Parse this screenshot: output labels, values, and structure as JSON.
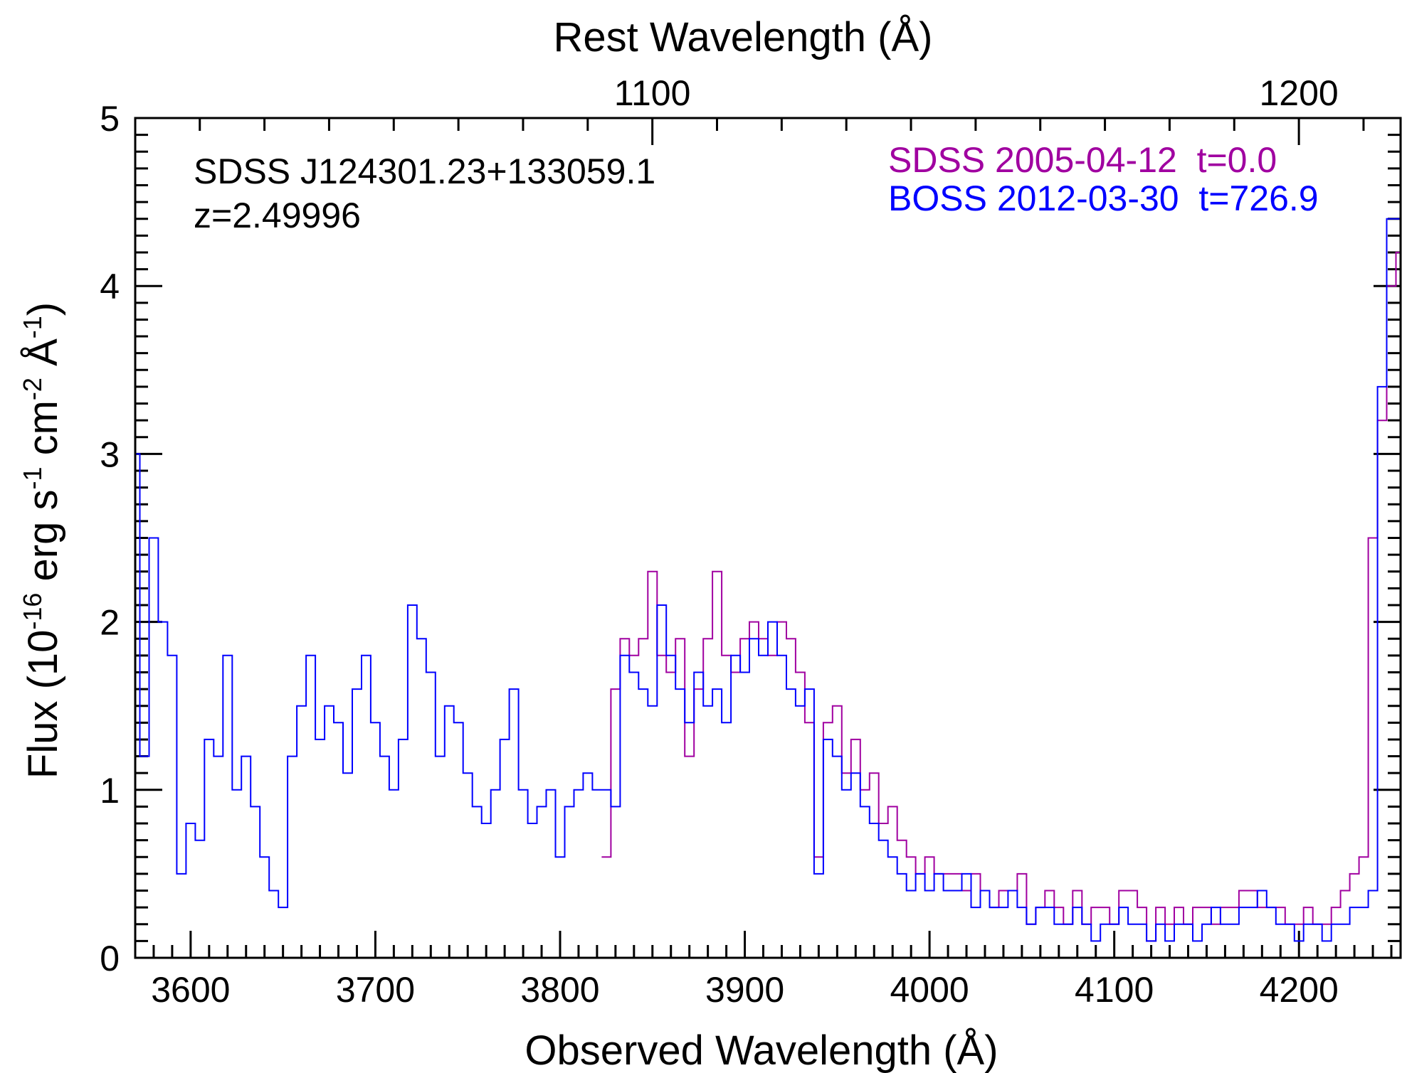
{
  "chart_data": {
    "type": "line",
    "top_axis_title": "Rest Wavelength (Å)",
    "xlabel": "Observed Wavelength (Å)",
    "ylabel": {
      "base": "Flux (10",
      "exp1": "-16",
      "mid1": " erg s",
      "exp2": "-1",
      "mid2": " cm",
      "exp3": "-2",
      "mid3": " Å",
      "exp4": "-1",
      "end": ")"
    },
    "object_name": "SDSS J124301.23+133059.1",
    "redshift_label": "z=2.49996",
    "redshift": 2.49996,
    "xlim": [
      3570,
      4255
    ],
    "ylim": [
      0,
      5
    ],
    "x_ticks": [
      "3600",
      "3700",
      "3800",
      "3900",
      "4000",
      "4100",
      "4200"
    ],
    "x_tick_values": [
      3600,
      3700,
      3800,
      3900,
      4000,
      4100,
      4200
    ],
    "y_ticks": [
      "0",
      "1",
      "2",
      "3",
      "4",
      "5"
    ],
    "y_tick_values": [
      0,
      1,
      2,
      3,
      4,
      5
    ],
    "top_ticks": [
      "1100",
      "1200"
    ],
    "top_tick_values": [
      1100,
      1200
    ],
    "grid": false,
    "legend_position": "top-right",
    "series": [
      {
        "name": "SDSS 2005-04-12  t=0.0",
        "color": "#a000a0",
        "style": "step",
        "x": [
          3825,
          3830,
          3835,
          3840,
          3845,
          3850,
          3855,
          3860,
          3865,
          3870,
          3875,
          3880,
          3885,
          3890,
          3895,
          3900,
          3905,
          3910,
          3915,
          3920,
          3925,
          3930,
          3935,
          3940,
          3945,
          3950,
          3955,
          3960,
          3965,
          3970,
          3975,
          3980,
          3985,
          3990,
          3995,
          4000,
          4005,
          4010,
          4015,
          4020,
          4025,
          4030,
          4035,
          4040,
          4045,
          4050,
          4055,
          4060,
          4065,
          4070,
          4075,
          4080,
          4085,
          4090,
          4095,
          4100,
          4105,
          4110,
          4115,
          4120,
          4125,
          4130,
          4135,
          4140,
          4145,
          4150,
          4155,
          4160,
          4165,
          4170,
          4175,
          4180,
          4185,
          4190,
          4195,
          4200,
          4205,
          4210,
          4215,
          4220,
          4225,
          4230,
          4235,
          4240,
          4245,
          4250,
          4255
        ],
        "y": [
          0.6,
          1.6,
          1.9,
          1.8,
          1.9,
          2.3,
          1.8,
          1.7,
          1.9,
          1.2,
          1.6,
          1.9,
          2.3,
          1.8,
          1.7,
          1.9,
          2.0,
          1.9,
          1.8,
          2.0,
          1.9,
          1.7,
          1.4,
          0.6,
          1.4,
          1.5,
          1.1,
          1.3,
          1.0,
          1.1,
          0.8,
          0.9,
          0.7,
          0.6,
          0.5,
          0.6,
          0.5,
          0.5,
          0.5,
          0.4,
          0.5,
          0.4,
          0.3,
          0.4,
          0.4,
          0.5,
          0.2,
          0.3,
          0.4,
          0.3,
          0.2,
          0.4,
          0.2,
          0.3,
          0.3,
          0.2,
          0.4,
          0.4,
          0.3,
          0.1,
          0.3,
          0.2,
          0.3,
          0.2,
          0.3,
          0.3,
          0.2,
          0.3,
          0.3,
          0.4,
          0.4,
          0.3,
          0.3,
          0.3,
          0.2,
          0.2,
          0.3,
          0.2,
          0.2,
          0.3,
          0.4,
          0.5,
          0.6,
          2.5,
          3.2,
          4.0,
          4.2
        ]
      },
      {
        "name": "BOSS 2012-03-30  t=726.9",
        "color": "#0000ff",
        "style": "step",
        "x": [
          3570,
          3575,
          3580,
          3585,
          3590,
          3595,
          3600,
          3605,
          3610,
          3615,
          3620,
          3625,
          3630,
          3635,
          3640,
          3645,
          3650,
          3655,
          3660,
          3665,
          3670,
          3675,
          3680,
          3685,
          3690,
          3695,
          3700,
          3705,
          3710,
          3715,
          3720,
          3725,
          3730,
          3735,
          3740,
          3745,
          3750,
          3755,
          3760,
          3765,
          3770,
          3775,
          3780,
          3785,
          3790,
          3795,
          3800,
          3805,
          3810,
          3815,
          3820,
          3825,
          3830,
          3835,
          3840,
          3845,
          3850,
          3855,
          3860,
          3865,
          3870,
          3875,
          3880,
          3885,
          3890,
          3895,
          3900,
          3905,
          3910,
          3915,
          3920,
          3925,
          3930,
          3935,
          3940,
          3945,
          3950,
          3955,
          3960,
          3965,
          3970,
          3975,
          3980,
          3985,
          3990,
          3995,
          4000,
          4005,
          4010,
          4015,
          4020,
          4025,
          4030,
          4035,
          4040,
          4045,
          4050,
          4055,
          4060,
          4065,
          4070,
          4075,
          4080,
          4085,
          4090,
          4095,
          4100,
          4105,
          4110,
          4115,
          4120,
          4125,
          4130,
          4135,
          4140,
          4145,
          4150,
          4155,
          4160,
          4165,
          4170,
          4175,
          4180,
          4185,
          4190,
          4195,
          4200,
          4205,
          4210,
          4215,
          4220,
          4225,
          4230,
          4235,
          4240,
          4245,
          4250,
          4255
        ],
        "y": [
          3.0,
          1.2,
          2.5,
          2.0,
          1.8,
          0.5,
          0.8,
          0.7,
          1.3,
          1.2,
          1.8,
          1.0,
          1.2,
          0.9,
          0.6,
          0.4,
          0.3,
          1.2,
          1.5,
          1.8,
          1.3,
          1.5,
          1.4,
          1.1,
          1.6,
          1.8,
          1.4,
          1.2,
          1.0,
          1.3,
          2.1,
          1.9,
          1.7,
          1.2,
          1.5,
          1.4,
          1.1,
          0.9,
          0.8,
          1.0,
          1.3,
          1.6,
          1.0,
          0.8,
          0.9,
          1.0,
          0.6,
          0.9,
          1.0,
          1.1,
          1.0,
          1.0,
          0.9,
          1.8,
          1.7,
          1.6,
          1.5,
          2.1,
          1.8,
          1.6,
          1.4,
          1.7,
          1.5,
          1.6,
          1.4,
          1.8,
          1.7,
          1.9,
          1.8,
          2.0,
          1.8,
          1.6,
          1.5,
          1.6,
          0.5,
          1.3,
          1.2,
          1.0,
          1.1,
          0.9,
          0.8,
          0.7,
          0.6,
          0.5,
          0.4,
          0.5,
          0.4,
          0.5,
          0.4,
          0.4,
          0.5,
          0.3,
          0.4,
          0.3,
          0.3,
          0.4,
          0.3,
          0.2,
          0.3,
          0.3,
          0.2,
          0.2,
          0.3,
          0.2,
          0.1,
          0.2,
          0.2,
          0.3,
          0.2,
          0.2,
          0.1,
          0.2,
          0.1,
          0.2,
          0.2,
          0.1,
          0.2,
          0.3,
          0.2,
          0.2,
          0.3,
          0.3,
          0.4,
          0.3,
          0.2,
          0.2,
          0.1,
          0.2,
          0.2,
          0.1,
          0.2,
          0.2,
          0.3,
          0.3,
          0.4,
          3.4,
          4.4,
          4.4
        ]
      }
    ]
  }
}
